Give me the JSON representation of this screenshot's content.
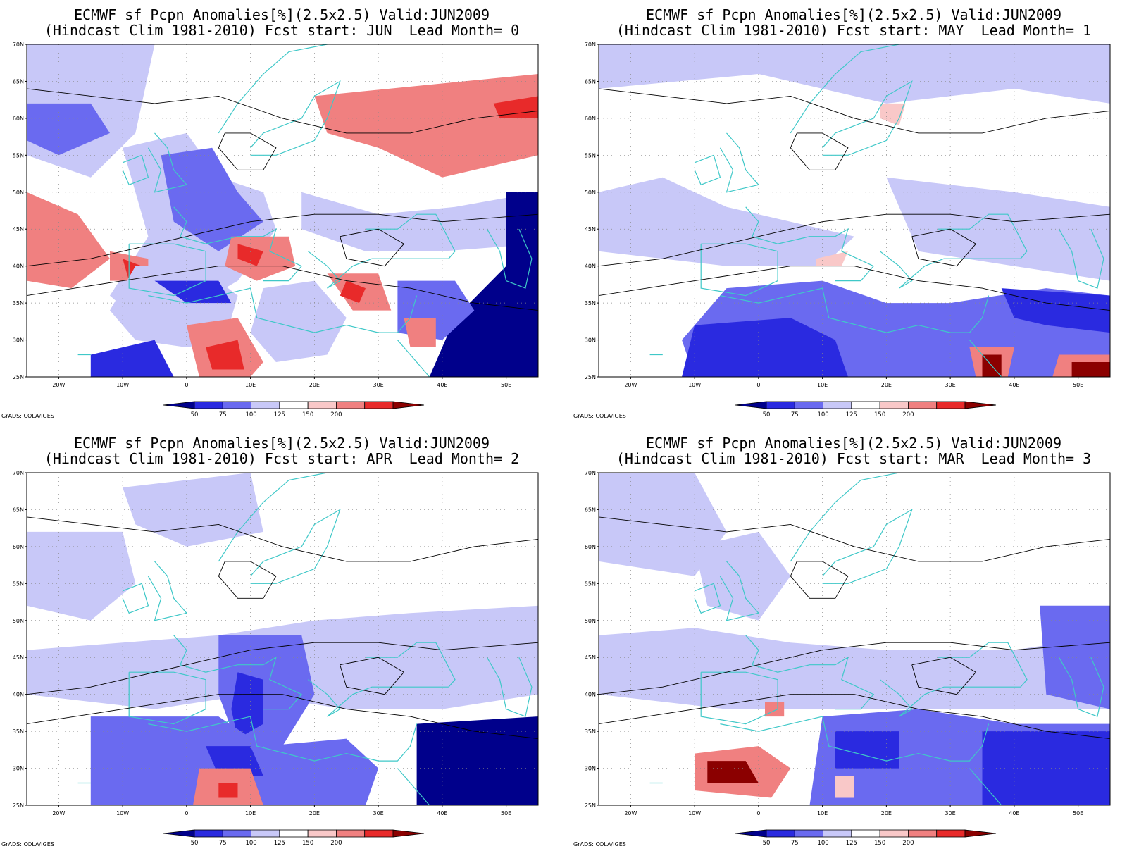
{
  "panels": [
    {
      "title_line1": "ECMWF sf Pcpn Anomalies[%](2.5x2.5) Valid:JUN2009",
      "title_line2": "(Hindcast Clim 1981-2010) Fcst start: JUN  Lead Month= 0"
    },
    {
      "title_line1": "ECMWF sf Pcpn Anomalies[%](2.5x2.5) Valid:JUN2009",
      "title_line2": "(Hindcast Clim 1981-2010) Fcst start: MAY  Lead Month= 1"
    },
    {
      "title_line1": "ECMWF sf Pcpn Anomalies[%](2.5x2.5) Valid:JUN2009",
      "title_line2": "(Hindcast Clim 1981-2010) Fcst start: APR  Lead Month= 2"
    },
    {
      "title_line1": "ECMWF sf Pcpn Anomalies[%](2.5x2.5) Valid:JUN2009",
      "title_line2": "(Hindcast Clim 1981-2010) Fcst start: MAR  Lead Month= 3"
    }
  ],
  "lat_labels": [
    "70N",
    "65N",
    "60N",
    "55N",
    "50N",
    "45N",
    "40N",
    "35N",
    "30N",
    "25N"
  ],
  "lon_labels": [
    "20W",
    "10W",
    "0",
    "10E",
    "20E",
    "30E",
    "40E",
    "50E"
  ],
  "colorbar": {
    "labels": [
      "50",
      "75",
      "100",
      "125",
      "150",
      "200"
    ],
    "colors": [
      "#00008b",
      "#2a2ae0",
      "#6a6af0",
      "#c8c8f8",
      "#ffffff",
      "#f9c8c8",
      "#f08080",
      "#e82a2a",
      "#8b0000"
    ]
  },
  "credit": "GrADS: COLA/IGES",
  "colors": {
    "coast": "#3fc8c8",
    "contour": "#000000"
  }
}
